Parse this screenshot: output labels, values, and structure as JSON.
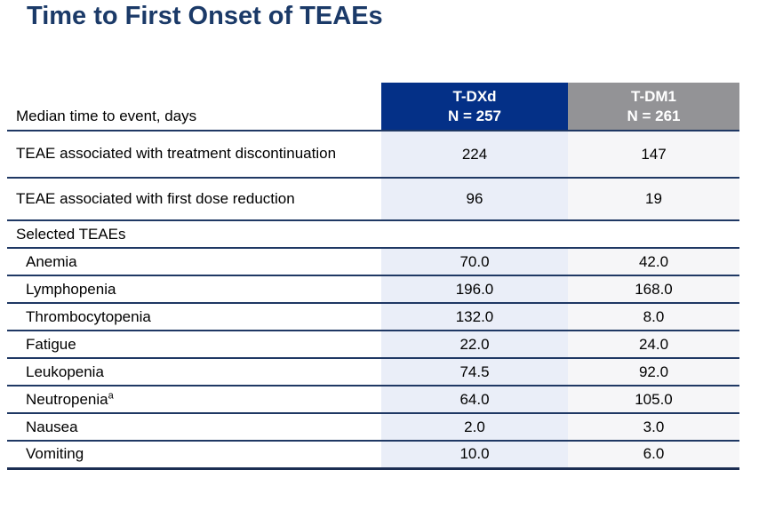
{
  "title": "Time to First Onset of TEAEs",
  "colors": {
    "title_navy": "#1B3A68",
    "tdxd_header_blue": "#043087",
    "tdm1_header_gray": "#939396",
    "tdxd_column_fill": "#EAEEF8",
    "tdm1_column_fill": "#F6F6F8",
    "row_border_navy": "#1F3864",
    "header_text_white": "#FFFFFF"
  },
  "table": {
    "corner_label": "Median time to event, days",
    "columns": [
      {
        "label": "T-DXd",
        "n_label": "N = 257"
      },
      {
        "label": "T-DM1",
        "n_label": "N = 261"
      }
    ],
    "rows": [
      {
        "label": "TEAE associated with treatment discontinuation",
        "tdxd": "224",
        "tdm1": "147"
      },
      {
        "label": "TEAE associated with first dose reduction",
        "tdxd": "96",
        "tdm1": "19"
      },
      {
        "label": "Selected TEAEs"
      },
      {
        "label": "Anemia",
        "tdxd": "70.0",
        "tdm1": "42.0"
      },
      {
        "label": "Lymphopenia",
        "tdxd": "196.0",
        "tdm1": "168.0"
      },
      {
        "label": "Thrombocytopenia",
        "tdxd": "132.0",
        "tdm1": "8.0"
      },
      {
        "label": "Fatigue",
        "tdxd": "22.0",
        "tdm1": "24.0"
      },
      {
        "label": "Leukopenia",
        "tdxd": "74.5",
        "tdm1": "92.0"
      },
      {
        "label": "Neutropenia",
        "sup": "a",
        "tdxd": "64.0",
        "tdm1": "105.0"
      },
      {
        "label": "Nausea",
        "tdxd": "2.0",
        "tdm1": "3.0"
      },
      {
        "label": "Vomiting",
        "tdxd": "10.0",
        "tdm1": "6.0"
      }
    ]
  }
}
